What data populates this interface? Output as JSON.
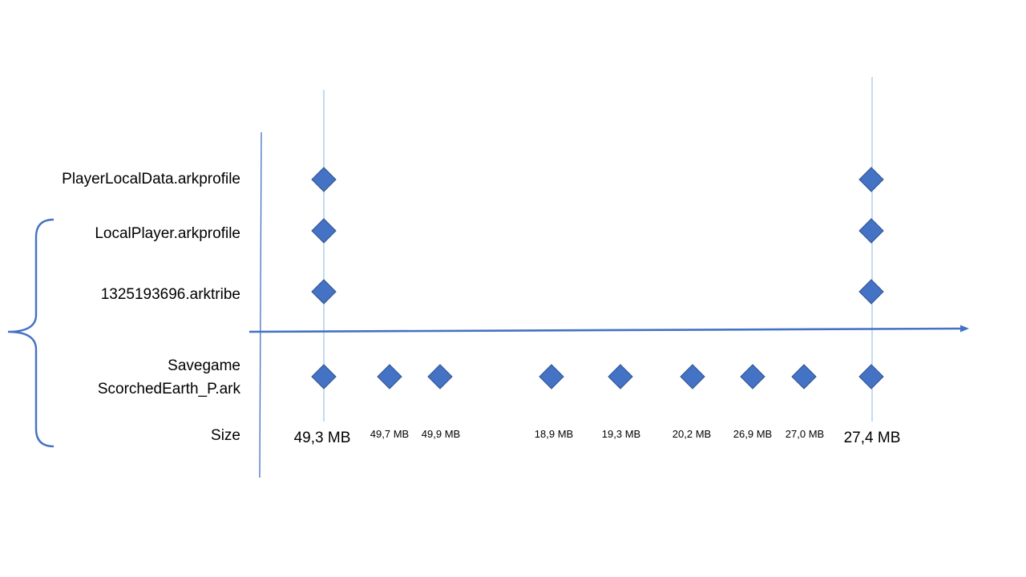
{
  "colors": {
    "line": "#4472c4",
    "marker_fill": "#4472c4",
    "marker_stroke": "#2f528f",
    "guide": "#9dc3e6",
    "brace": "#4472c4"
  },
  "rows": {
    "player_local_data": "PlayerLocalData.arkprofile",
    "local_player": "LocalPlayer.arkprofile",
    "tribe": "1325193696.arktribe",
    "savegame_line1": "Savegame",
    "savegame_line2": "ScorchedEarth_P.ark",
    "size": "Size"
  },
  "sizes": [
    "49,3 MB",
    "49,7 MB",
    "49,9 MB",
    "18,9 MB",
    "19,3 MB",
    "20,2 MB",
    "26,9 MB",
    "27,0 MB",
    "27,4 MB"
  ]
}
